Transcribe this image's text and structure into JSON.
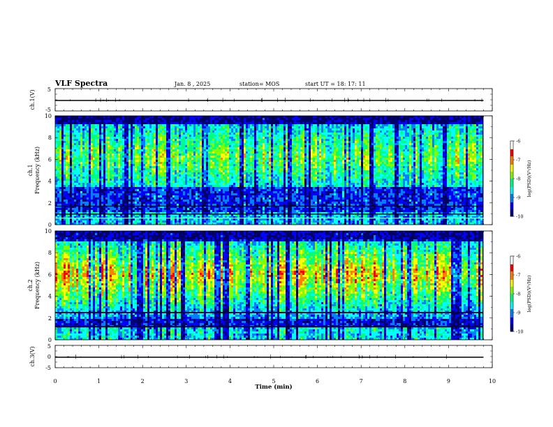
{
  "header": {
    "title": "VLF Spectra",
    "date": "Jan. 8 , 2025",
    "station": "station= MOS",
    "start": "start  UT =   18: 17: 11"
  },
  "chart_data": [
    {
      "type": "line",
      "panel": "ch1-waveform",
      "ylabel": "ch.1(V)",
      "ylim": [
        -5,
        5
      ],
      "yticks": [
        5,
        -5
      ],
      "xlim": [
        0,
        10
      ],
      "x": [
        0,
        1.5,
        3.9,
        4.0,
        9.8
      ],
      "values": [
        0,
        0,
        0,
        0,
        0
      ]
    },
    {
      "type": "heatmap",
      "panel": "ch1-spectrogram",
      "ylabel": "ch.1\nFrequency (kHz)",
      "ylim": [
        0,
        10
      ],
      "yticks": [
        0,
        2,
        4,
        6,
        8,
        10
      ],
      "xlim": [
        0,
        10
      ],
      "data_xrange": [
        0,
        9.8
      ],
      "colorbar": {
        "label": "log(PSD)(V²/Hz)",
        "range": [
          -10,
          -6
        ],
        "ticks": [
          -6,
          -7,
          -8,
          -9,
          -10
        ]
      }
    },
    {
      "type": "heatmap",
      "panel": "ch2-spectrogram",
      "ylabel": "ch.2\nFrequency (kHz)",
      "ylim": [
        0,
        10
      ],
      "yticks": [
        0,
        2,
        4,
        6,
        8,
        10
      ],
      "xlim": [
        0,
        10
      ],
      "data_xrange": [
        0,
        9.8
      ],
      "colorbar": {
        "label": "log(PSD)(V²/Hz)",
        "range": [
          -10,
          -6
        ],
        "ticks": [
          -6,
          -7,
          -8,
          -9,
          -10
        ]
      }
    },
    {
      "type": "line",
      "panel": "ch3-waveform",
      "ylabel": "ch.3(V)",
      "ylim": [
        -5,
        5
      ],
      "yticks": [
        5,
        0,
        -5
      ],
      "xlim": [
        0,
        10
      ],
      "x": [
        0,
        9.8
      ],
      "values": [
        0,
        0
      ]
    }
  ],
  "xaxis": {
    "label": "Time  (min)",
    "ticks": [
      0,
      1,
      2,
      3,
      4,
      5,
      6,
      7,
      8,
      9,
      10
    ]
  },
  "colors": {
    "colormap": [
      "#000080",
      "#0000ff",
      "#0080ff",
      "#00ffff",
      "#00ff80",
      "#80ff00",
      "#ffff00",
      "#ff8000",
      "#ff0000",
      "#ffffff"
    ]
  }
}
